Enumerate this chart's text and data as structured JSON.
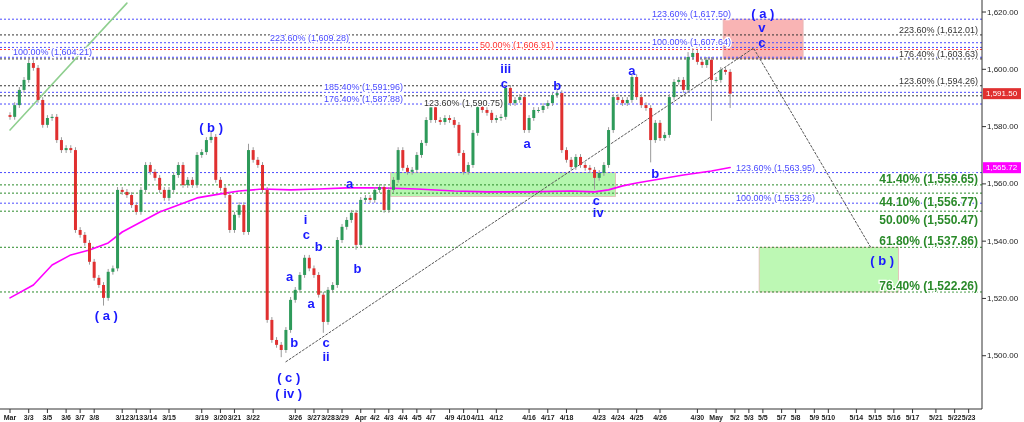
{
  "chart_data": {
    "type": "candlestick",
    "categories": [
      "Mar",
      null,
      null,
      null,
      "3/3",
      null,
      null,
      null,
      "3/5",
      null,
      null,
      null,
      "3/6",
      null,
      null,
      "3/7",
      null,
      null,
      "3/8",
      null,
      null,
      null,
      null,
      null,
      "3/12",
      null,
      null,
      "3/13",
      null,
      null,
      "3/14",
      null,
      null,
      null,
      "3/15",
      null,
      null,
      null,
      null,
      null,
      null,
      "3/19",
      null,
      null,
      null,
      "3/20",
      null,
      null,
      "3/21",
      null,
      null,
      null,
      "3/22",
      null,
      null,
      null,
      null,
      null,
      null,
      null,
      null,
      "3/26",
      null,
      null,
      null,
      "3/27",
      null,
      null,
      "3/28",
      null,
      null,
      "3/29",
      null,
      null,
      null,
      "Apr",
      null,
      null,
      "4/2",
      null,
      null,
      "4/3",
      null,
      null,
      "4/4",
      null,
      null,
      "4/5",
      null,
      null,
      "4/7",
      null,
      null,
      null,
      "4/9",
      null,
      null,
      "4/10",
      null,
      null,
      "4/11",
      null,
      null,
      null,
      "4/12",
      null,
      null,
      null,
      null,
      null,
      null,
      "4/16",
      null,
      null,
      null,
      "4/17",
      null,
      null,
      null,
      "4/18",
      null,
      null,
      null,
      null,
      null,
      null,
      "4/23",
      null,
      null,
      null,
      "4/24",
      null,
      null,
      null,
      "4/25",
      null,
      null,
      null,
      null,
      "4/26",
      null,
      null,
      null,
      null,
      null,
      null,
      null,
      "4/30",
      null,
      null,
      null,
      "May",
      null,
      null,
      null,
      "5/2",
      null,
      null,
      "5/3",
      null,
      null,
      "5/5",
      null,
      null,
      null,
      "5/7",
      null,
      null,
      "5/8",
      null,
      null,
      null,
      "5/9",
      null,
      null,
      "5/10",
      null,
      null,
      null,
      null,
      null,
      "5/14",
      null,
      null,
      null,
      "5/15",
      null,
      null,
      null,
      "5/16",
      null,
      null,
      null,
      "5/17",
      null,
      null,
      null,
      null,
      "5/21",
      null,
      null,
      null,
      "5/22",
      null,
      null,
      "5/23",
      null,
      null
    ],
    "ylim": [
      1481.4,
      1624.2
    ],
    "yticks": [
      {
        "value": 1500,
        "label": "1,500.00"
      },
      {
        "value": 1520,
        "label": "1,520.00"
      },
      {
        "value": 1540,
        "label": "1,540.00"
      },
      {
        "value": 1560,
        "label": "1,560.00"
      },
      {
        "value": 1580,
        "label": "1,580.00"
      },
      {
        "value": 1600,
        "label": "1,600.00"
      },
      {
        "value": 1620,
        "label": "1,620.00"
      }
    ],
    "series": [
      {
        "type": "line",
        "color": "#8fcf8f",
        "line_style": "solid",
        "values": [
          1578.8,
          null,
          null,
          null,
          null,
          null,
          null,
          null,
          null,
          null,
          null,
          null,
          null,
          null,
          null,
          null,
          null,
          null,
          null,
          null,
          null,
          null,
          null,
          null,
          null,
          1623.1,
          null,
          null,
          null,
          null,
          null,
          null,
          null,
          null,
          null,
          null,
          null,
          null,
          null,
          null,
          null,
          null,
          null,
          null,
          null,
          null,
          null,
          null,
          null,
          null,
          null,
          null,
          null,
          null,
          null,
          null,
          null,
          null,
          null,
          null,
          null,
          null,
          null,
          null,
          null,
          null,
          null,
          null,
          null,
          null,
          null,
          null,
          null,
          null,
          null,
          null,
          null,
          null,
          null,
          null,
          null,
          null,
          null,
          null,
          null,
          null,
          null,
          null,
          null,
          null,
          null,
          null,
          null,
          null,
          null,
          null,
          null,
          null,
          null,
          null,
          null,
          null,
          null,
          null,
          null,
          null,
          null,
          null,
          null,
          null,
          null,
          null,
          null,
          null,
          null,
          null,
          null,
          null,
          null,
          null,
          null,
          null,
          null,
          null,
          null,
          null,
          null,
          null,
          null,
          null,
          null,
          null,
          null,
          null,
          null,
          null,
          null,
          null,
          null,
          null,
          null,
          null,
          null,
          null,
          null,
          null,
          null,
          null,
          null,
          null,
          null,
          null,
          null,
          null,
          null,
          null,
          null,
          null,
          null,
          null,
          null,
          null,
          null,
          null,
          null,
          null,
          null,
          null,
          null,
          null,
          null,
          null,
          null,
          null,
          null,
          null,
          null,
          null,
          null,
          null,
          null,
          null,
          null,
          null,
          null,
          null,
          null,
          null,
          null,
          null,
          null,
          null,
          null,
          null,
          null,
          null,
          null,
          null,
          null,
          null,
          null,
          null,
          null,
          null,
          null,
          null,
          null,
          null
        ]
      },
      {
        "type": "line",
        "color": "#ff00ff",
        "line_style": "solid",
        "values": [
          1520.2,
          null,
          null,
          null,
          null,
          1524.7,
          null,
          null,
          null,
          1531.7,
          null,
          null,
          null,
          1535.2,
          null,
          null,
          null,
          1536.9,
          null,
          null,
          null,
          1539.4,
          null,
          null,
          1543.2,
          null,
          null,
          null,
          1546.7,
          null,
          null,
          null,
          1550.2,
          null,
          null,
          null,
          1552.6,
          null,
          null,
          null,
          1555.1,
          null,
          null,
          null,
          null,
          1556.5,
          null,
          null,
          null,
          1557.5,
          null,
          null,
          null,
          null,
          1558.2,
          null,
          null,
          null,
          null,
          null,
          1557.9,
          null,
          null,
          null,
          null,
          null,
          1558.2,
          null,
          null,
          null,
          null,
          null,
          1558.6,
          null,
          null,
          null,
          null,
          null,
          null,
          1558.6,
          null,
          null,
          null,
          null,
          null,
          null,
          null,
          1558.2,
          null,
          null,
          null,
          null,
          null,
          null,
          null,
          1557.5,
          null,
          null,
          null,
          null,
          null,
          null,
          1557.2,
          null,
          null,
          null,
          null,
          null,
          null,
          null,
          null,
          1557.2,
          null,
          null,
          null,
          null,
          null,
          null,
          null,
          null,
          1557.5,
          null,
          null,
          null,
          null,
          1557.2,
          null,
          null,
          1557.9,
          null,
          null,
          1559.3,
          null,
          null,
          1560.3,
          null,
          null,
          null,
          null,
          1561.7,
          null,
          null,
          null,
          null,
          1563.1,
          null,
          null,
          null,
          null,
          null,
          1564.5,
          null,
          null,
          null,
          1565.72,
          null,
          null,
          null,
          null,
          null,
          null,
          null,
          null,
          null,
          null,
          null,
          null,
          null,
          null,
          null,
          null,
          null,
          null,
          null,
          null,
          null,
          null,
          null,
          null,
          null,
          null,
          null,
          null,
          null,
          null,
          null,
          null,
          null,
          null,
          null,
          null,
          null,
          null,
          null,
          null,
          null,
          null,
          null,
          null,
          null,
          null,
          null,
          null,
          null,
          null,
          null,
          null,
          null
        ]
      },
      {
        "type": "line",
        "color": "#555555",
        "line_style": "dotted",
        "values": [
          null,
          null,
          null,
          null,
          null,
          null,
          null,
          null,
          null,
          null,
          null,
          null,
          null,
          null,
          null,
          null,
          null,
          null,
          null,
          null,
          null,
          null,
          null,
          null,
          null,
          null,
          null,
          null,
          null,
          null,
          null,
          null,
          null,
          null,
          null,
          null,
          null,
          null,
          null,
          null,
          null,
          null,
          null,
          null,
          null,
          null,
          null,
          null,
          null,
          null,
          null,
          null,
          null,
          null,
          null,
          null,
          null,
          null,
          null,
          1497.9,
          null,
          null,
          null,
          null,
          null,
          null,
          null,
          null,
          null,
          null,
          null,
          null,
          null,
          null,
          null,
          null,
          null,
          null,
          null,
          null,
          null,
          null,
          null,
          null,
          null,
          null,
          null,
          null,
          null,
          null,
          null,
          null,
          null,
          null,
          null,
          null,
          null,
          null,
          null,
          null,
          null,
          null,
          null,
          null,
          null,
          null,
          null,
          null,
          null,
          null,
          null,
          null,
          null,
          null,
          null,
          null,
          null,
          null,
          null,
          null,
          null,
          null,
          null,
          null,
          null,
          null,
          null,
          null,
          null,
          null,
          null,
          null,
          null,
          null,
          null,
          null,
          null,
          null,
          null,
          null,
          null,
          null,
          null,
          null,
          null,
          null,
          null,
          null,
          null,
          null,
          null,
          null,
          null,
          null,
          null,
          null,
          null,
          null,
          null,
          1607.4,
          null,
          null,
          null,
          null,
          null,
          null,
          null,
          null,
          null,
          null,
          null,
          null,
          null,
          null,
          null,
          null,
          null,
          null,
          null,
          null,
          null,
          null,
          null,
          null,
          1538.0,
          null,
          null,
          null,
          null,
          null,
          null,
          null,
          null,
          null,
          null,
          null,
          null,
          null,
          null,
          null,
          null,
          null,
          null,
          null,
          null,
          null,
          null,
          null
        ]
      },
      {
        "type": "candlestick",
        "ohlc": [
          [
            1584.0,
            1585.0,
            1582.4,
            1583.4
          ],
          [
            1583.4,
            1588.5,
            1582.4,
            1587.5
          ],
          [
            1587.5,
            1593.8,
            1586.5,
            1592.8
          ],
          [
            1592.8,
            1597.3,
            1591.8,
            1596.3
          ],
          [
            1596.3,
            1604.2,
            1595.3,
            1602.2
          ],
          [
            1602.2,
            1603.2,
            1599.5,
            1600.5
          ],
          [
            1600.5,
            1601.5,
            1588.3,
            1589.3
          ],
          [
            1589.3,
            1590.3,
            1579.6,
            1580.6
          ],
          [
            1580.6,
            1584.0,
            1579.6,
            1583.0
          ],
          [
            1583.0,
            1584.4,
            1582.0,
            1583.4
          ],
          [
            1583.4,
            1584.4,
            1574.3,
            1575.3
          ],
          [
            1575.3,
            1576.3,
            1570.8,
            1571.8
          ],
          [
            1571.8,
            1573.5,
            1570.8,
            1572.5
          ],
          [
            1572.5,
            1573.5,
            1570.8,
            1571.8
          ],
          [
            1571.8,
            1572.8,
            1542.9,
            1543.9
          ],
          [
            1543.9,
            1544.9,
            1541.2,
            1542.2
          ],
          [
            1542.2,
            1543.2,
            1538.4,
            1539.4
          ],
          [
            1539.4,
            1540.4,
            1531.8,
            1532.8
          ],
          [
            1532.8,
            1533.8,
            1526.2,
            1527.2
          ],
          [
            1527.2,
            1528.2,
            1523.7,
            1524.7
          ],
          [
            1524.7,
            1525.7,
            1517.5,
            1520.2
          ],
          [
            1520.2,
            1530.3,
            1519.2,
            1529.3
          ],
          [
            1529.3,
            1531.5,
            1528.3,
            1530.5
          ],
          [
            1530.5,
            1558.9,
            1529.5,
            1557.9
          ],
          [
            1557.9,
            1558.9,
            1556.2,
            1557.2
          ],
          [
            1557.2,
            1558.2,
            1555.1,
            1556.1
          ],
          [
            1556.1,
            1557.1,
            1551.6,
            1552.6
          ],
          [
            1552.6,
            1553.6,
            1549.2,
            1550.2
          ],
          [
            1550.2,
            1558.9,
            1549.2,
            1557.9
          ],
          [
            1557.9,
            1567.6,
            1556.9,
            1566.6
          ],
          [
            1566.6,
            1567.6,
            1563.2,
            1564.2
          ],
          [
            1564.2,
            1565.2,
            1561.1,
            1562.1
          ],
          [
            1562.1,
            1563.1,
            1556.9,
            1557.9
          ],
          [
            1557.9,
            1558.9,
            1554.1,
            1555.1
          ],
          [
            1555.1,
            1558.9,
            1554.1,
            1557.9
          ],
          [
            1557.9,
            1564.1,
            1556.9,
            1563.1
          ],
          [
            1563.1,
            1567.6,
            1562.1,
            1566.6
          ],
          [
            1566.6,
            1567.6,
            1558.6,
            1559.6
          ],
          [
            1559.6,
            1562.4,
            1558.6,
            1561.4
          ],
          [
            1561.4,
            1562.4,
            1558.6,
            1559.6
          ],
          [
            1559.6,
            1571.1,
            1558.6,
            1570.1
          ],
          [
            1570.1,
            1572.1,
            1569.1,
            1571.1
          ],
          [
            1571.1,
            1576.3,
            1570.1,
            1575.3
          ],
          [
            1575.3,
            1578.5,
            1574.3,
            1576.4
          ],
          [
            1576.4,
            1577.4,
            1560.4,
            1561.4
          ],
          [
            1561.4,
            1562.4,
            1557.6,
            1558.6
          ],
          [
            1558.6,
            1559.6,
            1555.1,
            1556.1
          ],
          [
            1556.1,
            1557.1,
            1542.9,
            1543.9
          ],
          [
            1543.9,
            1550.2,
            1542.9,
            1549.2
          ],
          [
            1549.2,
            1553.6,
            1548.2,
            1552.6
          ],
          [
            1552.6,
            1553.6,
            1542.2,
            1543.2
          ],
          [
            1543.2,
            1574.0,
            1542.2,
            1571.8
          ],
          [
            1571.8,
            1572.8,
            1567.4,
            1568.4
          ],
          [
            1568.4,
            1569.4,
            1565.6,
            1566.6
          ],
          [
            1566.6,
            1567.6,
            1556.9,
            1557.9
          ],
          [
            1557.9,
            1558.9,
            1511.5,
            1512.5
          ],
          [
            1512.5,
            1513.5,
            1504.5,
            1505.5
          ],
          [
            1505.5,
            1506.5,
            1502.8,
            1503.8
          ],
          [
            1503.8,
            1504.8,
            1499.5,
            1502.0
          ],
          [
            1502.0,
            1510.0,
            1501.0,
            1509.0
          ],
          [
            1509.0,
            1520.5,
            1508.0,
            1519.5
          ],
          [
            1519.5,
            1524.0,
            1518.5,
            1523.0
          ],
          [
            1523.0,
            1529.2,
            1522.0,
            1528.2
          ],
          [
            1528.2,
            1535.2,
            1527.2,
            1534.2
          ],
          [
            1534.2,
            1535.2,
            1529.5,
            1530.5
          ],
          [
            1530.5,
            1531.5,
            1527.2,
            1528.2
          ],
          [
            1528.2,
            1529.2,
            1520.3,
            1521.3
          ],
          [
            1521.3,
            1522.3,
            1508.0,
            1511.8
          ],
          [
            1511.8,
            1524.0,
            1510.8,
            1523.0
          ],
          [
            1523.0,
            1525.7,
            1522.0,
            1524.7
          ],
          [
            1524.7,
            1541.4,
            1523.7,
            1540.4
          ],
          [
            1540.4,
            1546.0,
            1539.4,
            1545.0
          ],
          [
            1545.0,
            1548.4,
            1544.0,
            1547.4
          ],
          [
            1547.4,
            1550.9,
            1546.4,
            1549.9
          ],
          [
            1549.9,
            1550.9,
            1537.0,
            1538.7
          ],
          [
            1538.7,
            1555.4,
            1537.7,
            1554.4
          ],
          [
            1554.4,
            1556.1,
            1553.4,
            1555.1
          ],
          [
            1555.1,
            1556.1,
            1553.4,
            1554.4
          ],
          [
            1554.4,
            1558.9,
            1553.4,
            1557.9
          ],
          [
            1557.9,
            1559.9,
            1556.9,
            1558.9
          ],
          [
            1558.9,
            1559.9,
            1549.9,
            1550.9
          ],
          [
            1550.9,
            1558.9,
            1549.9,
            1557.9
          ],
          [
            1557.9,
            1562.4,
            1556.9,
            1561.4
          ],
          [
            1561.4,
            1572.8,
            1560.4,
            1571.8
          ],
          [
            1571.8,
            1572.8,
            1564.6,
            1565.6
          ],
          [
            1565.6,
            1566.6,
            1563.2,
            1564.2
          ],
          [
            1564.2,
            1565.9,
            1563.2,
            1564.9
          ],
          [
            1564.9,
            1571.1,
            1563.9,
            1570.1
          ],
          [
            1570.1,
            1575.3,
            1569.1,
            1574.3
          ],
          [
            1574.3,
            1583.3,
            1573.3,
            1582.3
          ],
          [
            1582.3,
            1588.5,
            1581.3,
            1587.5
          ],
          [
            1587.5,
            1588.5,
            1581.3,
            1582.3
          ],
          [
            1582.3,
            1583.3,
            1580.6,
            1581.6
          ],
          [
            1581.6,
            1584.0,
            1580.6,
            1583.0
          ],
          [
            1583.0,
            1584.0,
            1581.3,
            1582.3
          ],
          [
            1582.3,
            1583.3,
            1579.6,
            1580.6
          ],
          [
            1580.6,
            1581.6,
            1569.8,
            1570.8
          ],
          [
            1570.8,
            1571.8,
            1563.2,
            1564.2
          ],
          [
            1564.2,
            1567.6,
            1563.2,
            1566.6
          ],
          [
            1566.6,
            1578.8,
            1565.6,
            1577.8
          ],
          [
            1577.8,
            1587.9,
            1576.8,
            1586.9
          ],
          [
            1586.9,
            1587.9,
            1584.8,
            1585.8
          ],
          [
            1585.8,
            1586.8,
            1583.8,
            1584.8
          ],
          [
            1584.8,
            1585.8,
            1581.3,
            1582.3
          ],
          [
            1582.3,
            1584.0,
            1581.3,
            1583.0
          ],
          [
            1583.0,
            1584.4,
            1582.0,
            1583.4
          ],
          [
            1583.4,
            1594.5,
            1582.4,
            1593.5
          ],
          [
            1593.5,
            1594.5,
            1587.2,
            1588.2
          ],
          [
            1588.2,
            1590.3,
            1587.2,
            1589.3
          ],
          [
            1589.3,
            1591.3,
            1588.3,
            1590.3
          ],
          [
            1590.3,
            1591.3,
            1577.8,
            1578.8
          ],
          [
            1578.8,
            1584.0,
            1577.8,
            1583.0
          ],
          [
            1583.0,
            1586.8,
            1582.0,
            1585.8
          ],
          [
            1585.8,
            1586.8,
            1584.8,
            1585.8
          ],
          [
            1585.8,
            1588.2,
            1584.8,
            1587.2
          ],
          [
            1587.2,
            1589.2,
            1586.2,
            1588.2
          ],
          [
            1588.2,
            1592.0,
            1587.2,
            1591.0
          ],
          [
            1591.0,
            1592.7,
            1590.0,
            1591.7
          ],
          [
            1591.7,
            1592.7,
            1570.8,
            1571.8
          ],
          [
            1571.8,
            1572.8,
            1567.4,
            1568.4
          ],
          [
            1568.4,
            1569.4,
            1564.9,
            1565.9
          ],
          [
            1565.9,
            1570.4,
            1564.9,
            1569.4
          ],
          [
            1569.4,
            1570.4,
            1565.6,
            1566.6
          ],
          [
            1566.6,
            1567.6,
            1564.6,
            1565.6
          ],
          [
            1565.6,
            1566.6,
            1563.9,
            1564.9
          ],
          [
            1564.9,
            1565.9,
            1558.0,
            1562.1
          ],
          [
            1562.1,
            1564.8,
            1561.1,
            1563.8
          ],
          [
            1563.8,
            1567.6,
            1562.8,
            1566.6
          ],
          [
            1566.6,
            1579.8,
            1565.6,
            1578.8
          ],
          [
            1578.8,
            1591.3,
            1577.8,
            1590.3
          ],
          [
            1590.3,
            1591.3,
            1588.3,
            1589.3
          ],
          [
            1589.3,
            1590.3,
            1587.2,
            1588.2
          ],
          [
            1588.2,
            1590.3,
            1587.2,
            1589.3
          ],
          [
            1589.3,
            1598.5,
            1588.3,
            1597.3
          ],
          [
            1597.3,
            1598.3,
            1589.3,
            1590.3
          ],
          [
            1590.3,
            1591.3,
            1586.5,
            1587.5
          ],
          [
            1587.5,
            1588.5,
            1585.5,
            1586.5
          ],
          [
            1586.5,
            1587.5,
            1567.5,
            1575.3
          ],
          [
            1575.3,
            1582.3,
            1574.3,
            1581.3
          ],
          [
            1581.3,
            1582.3,
            1575.0,
            1576.0
          ],
          [
            1576.0,
            1578.1,
            1575.0,
            1577.1
          ],
          [
            1577.1,
            1591.3,
            1576.1,
            1590.3
          ],
          [
            1590.3,
            1596.6,
            1589.3,
            1595.6
          ],
          [
            1595.6,
            1597.3,
            1594.6,
            1596.3
          ],
          [
            1596.3,
            1597.3,
            1591.8,
            1592.8
          ],
          [
            1592.8,
            1606.0,
            1591.8,
            1604.3
          ],
          [
            1604.3,
            1607.6,
            1603.3,
            1605.7
          ],
          [
            1605.7,
            1606.7,
            1601.6,
            1602.6
          ],
          [
            1602.6,
            1603.6,
            1600.5,
            1601.5
          ],
          [
            1601.5,
            1604.3,
            1600.5,
            1603.3
          ],
          [
            1603.3,
            1604.3,
            1582.0,
            1596.3
          ],
          [
            1596.3,
            1597.3,
            1595.3,
            1596.3
          ],
          [
            1596.3,
            1600.8,
            1595.3,
            1599.8
          ],
          [
            1599.8,
            1600.8,
            1598.1,
            1599.1
          ],
          [
            1599.1,
            1600.1,
            1586.5,
            1591.5
          ],
          null,
          null,
          null,
          null,
          null,
          null,
          null,
          null,
          null,
          null,
          null,
          null,
          null,
          null,
          null,
          null,
          null,
          null,
          null,
          null,
          null,
          null,
          null,
          null,
          null,
          null,
          null,
          null,
          null,
          null,
          null,
          null,
          null,
          null,
          null,
          null,
          null,
          null,
          null,
          null,
          null,
          null,
          null,
          null,
          null,
          null,
          null,
          null,
          null,
          null,
          null,
          null,
          null
        ],
        "value_labels": [
          null,
          null,
          null,
          null,
          null,
          null,
          null,
          null,
          null,
          null,
          null,
          null,
          null,
          null,
          null,
          null,
          null,
          null,
          null,
          null,
          null,
          null,
          null,
          null,
          null,
          null,
          null,
          null,
          null,
          null,
          null,
          null,
          null,
          null,
          null,
          null,
          null,
          null,
          null,
          null,
          null,
          null,
          null,
          null,
          null,
          null,
          null,
          null,
          null,
          null,
          null,
          null,
          null,
          null,
          null,
          null,
          null,
          null,
          null,
          null,
          null,
          null,
          null,
          null,
          null,
          null,
          null,
          null,
          null,
          null,
          null,
          null,
          null,
          null,
          null,
          null,
          null,
          null,
          null,
          null,
          null,
          null,
          null,
          null,
          null,
          null,
          null,
          null,
          null,
          null,
          null,
          null,
          null,
          null,
          null,
          null,
          null,
          null,
          null,
          null,
          null,
          null,
          null,
          null,
          null,
          null,
          null,
          null,
          null,
          null,
          null,
          null,
          null,
          null,
          null,
          null,
          null,
          null,
          null,
          null,
          null,
          null,
          null,
          null,
          null,
          null,
          null,
          null,
          null,
          null,
          null,
          null,
          null,
          null,
          null,
          null,
          null,
          null,
          null,
          null,
          null,
          null,
          null,
          null,
          null,
          null,
          null,
          null,
          null,
          null,
          null,
          null,
          null,
          null,
          "1,591.50",
          null,
          null,
          null,
          null,
          null,
          null,
          null,
          null,
          null,
          null,
          null,
          null,
          null,
          null,
          null,
          null,
          null,
          null,
          null,
          null,
          null,
          null,
          null,
          null,
          null,
          null,
          null,
          null,
          null,
          null,
          null,
          null,
          null,
          null,
          null,
          null,
          null,
          null,
          null,
          null,
          null,
          null,
          null,
          null,
          null,
          null,
          null,
          null,
          null,
          null,
          null,
          null,
          null
        ]
      }
    ],
    "bands": [
      {
        "axis": "y",
        "from": 1555.6,
        "to": 1563.95,
        "color": "#a8f5a0"
      },
      {
        "axis": "y",
        "from": 1522.26,
        "to": 1537.86,
        "color": "#b2f7a8"
      },
      {
        "axis": "y",
        "from": 1603.63,
        "to": 1617.5,
        "color": "#f9a8a8"
      }
    ],
    "ref_lines": [
      {
        "axis": "y",
        "value": 1604.21,
        "label": "100.00% (1,604.21)",
        "color": "#4a4aff",
        "line_style": "dotted"
      },
      {
        "axis": "y",
        "value": 1609.28,
        "label": "223.60% (1,609.28)",
        "color": "#4a4aff",
        "line_style": "dotted"
      },
      {
        "axis": "y",
        "value": 1591.96,
        "label": "185.40% (1,591.96)",
        "color": "#4a4aff",
        "line_style": "dotted"
      },
      {
        "axis": "y",
        "value": 1590.75,
        "label": "123.60% (1,590.75)",
        "color": "#333333",
        "line_style": "dotted"
      },
      {
        "axis": "y",
        "value": 1587.88,
        "label": "176.40% (1,587.88)",
        "color": "#4a4aff",
        "line_style": "dotted"
      },
      {
        "axis": "y",
        "value": 1563.95,
        "label": "123.60% (1,563.95)",
        "color": "#4a4aff",
        "line_style": "dotted"
      },
      {
        "axis": "y",
        "value": 1553.26,
        "label": "100.00% (1,553.26)",
        "color": "#4a4aff",
        "line_style": "dotted"
      },
      {
        "axis": "y",
        "value": 1617.5,
        "label": "123.60% (1,617.50)",
        "color": "#4a4aff",
        "line_style": "dotted"
      },
      {
        "axis": "y",
        "value": 1607.64,
        "label": "100.00% (1,607.64)",
        "color": "#4a4aff",
        "line_style": "dotted"
      },
      {
        "axis": "y",
        "value": 1606.91,
        "label": "50.00% (1,606.91)",
        "color": "#ff3333",
        "line_style": "dotted"
      },
      {
        "axis": "y",
        "value": 1612.01,
        "label": "223.60% (1,612.01)",
        "color": "#333333",
        "line_style": "dotted"
      },
      {
        "axis": "y",
        "value": 1603.63,
        "label": "176.40% (1,603.63)",
        "color": "#333333",
        "line_style": "dotted"
      },
      {
        "axis": "y",
        "value": 1594.26,
        "label": "123.60% (1,594.26)",
        "color": "#333333",
        "line_style": "dotted"
      },
      {
        "axis": "y",
        "value": 1559.65,
        "label": "41.40% (1,559.65)",
        "color": "#2a8a2a",
        "line_style": "dotted"
      },
      {
        "axis": "y",
        "value": 1556.77,
        "label": "44.10% (1,556.77)",
        "color": "#2a8a2a",
        "line_style": "dotted"
      },
      {
        "axis": "y",
        "value": 1550.47,
        "label": "50.00% (1,550.47)",
        "color": "#2a8a2a",
        "line_style": "dotted"
      },
      {
        "axis": "y",
        "value": 1537.86,
        "label": "61.80% (1,537.86)",
        "color": "#2a8a2a",
        "line_style": "dotted"
      },
      {
        "axis": "y",
        "value": 1522.26,
        "label": "76.40% (1,522.26)",
        "color": "#2a8a2a",
        "line_style": "dotted"
      }
    ],
    "annotations": [
      "( a )",
      "( b )",
      "( c )",
      "( iv )",
      "i",
      "c",
      "a",
      "a",
      "b",
      "b",
      "c",
      "ii",
      "a",
      "b",
      "c",
      "iii",
      "a",
      "b",
      "c",
      "iv",
      "a",
      "b",
      "( a )",
      "v",
      "c",
      "( b )",
      "1,565.72"
    ]
  }
}
